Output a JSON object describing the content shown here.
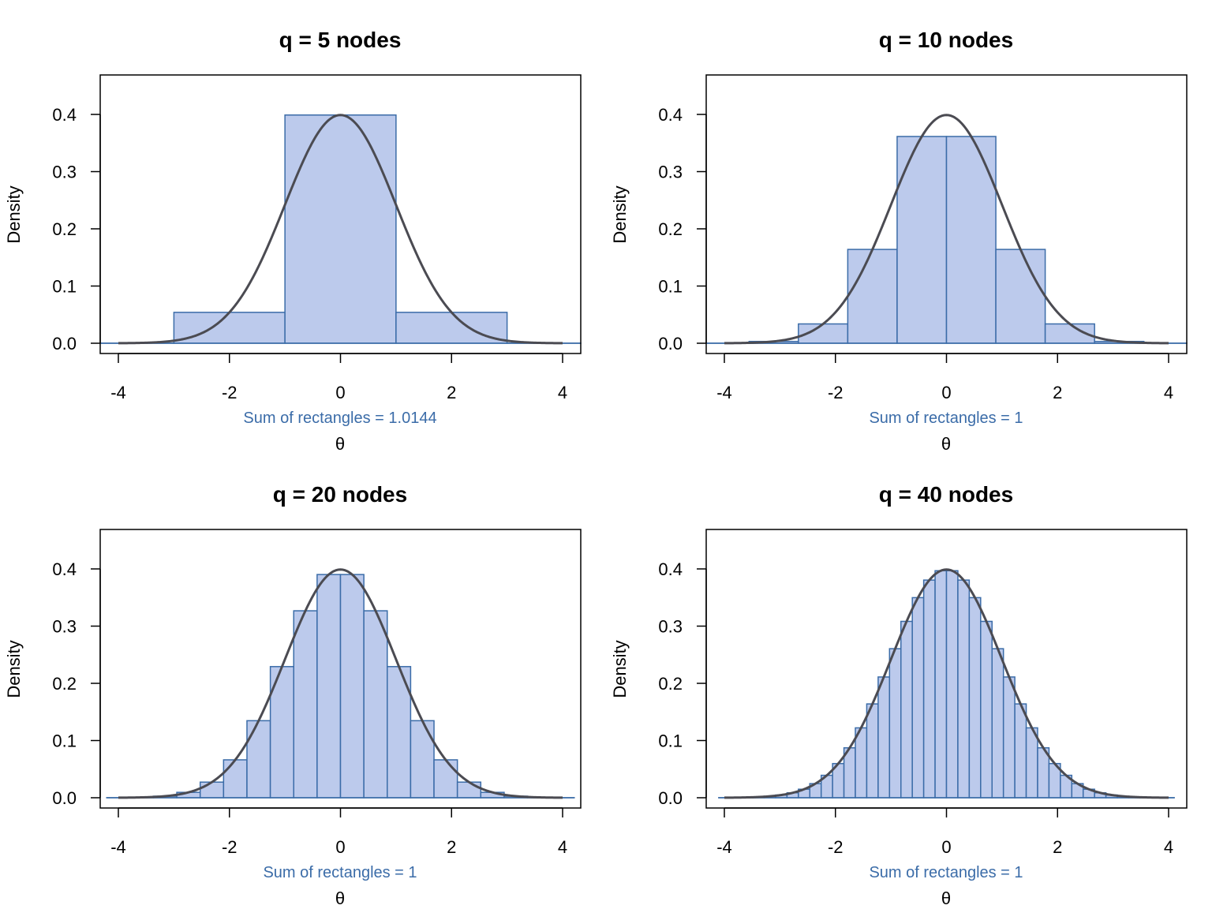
{
  "chart_data": [
    {
      "type": "bar",
      "title": "q = 5 nodes",
      "q": 5,
      "node_range": [
        -4,
        4
      ],
      "xlabel": "θ",
      "ylabel": "Density",
      "sub": "Sum of rectangles = 1.0144",
      "xticks": [
        "-4",
        "-2",
        "0",
        "2",
        "4"
      ],
      "yticks": [
        "0.0",
        "0.1",
        "0.2",
        "0.3",
        "0.4"
      ],
      "xlim": [
        -4.32,
        4.32
      ],
      "ylim": [
        -0.018,
        0.469
      ],
      "curve": "standard normal density",
      "grid": false
    },
    {
      "type": "bar",
      "title": "q = 10 nodes",
      "q": 10,
      "node_range": [
        -4,
        4
      ],
      "xlabel": "θ",
      "ylabel": "Density",
      "sub": "Sum of rectangles = 1",
      "xticks": [
        "-4",
        "-2",
        "0",
        "2",
        "4"
      ],
      "yticks": [
        "0.0",
        "0.1",
        "0.2",
        "0.3",
        "0.4"
      ],
      "xlim": [
        -4.32,
        4.32
      ],
      "ylim": [
        -0.018,
        0.469
      ],
      "curve": "standard normal density",
      "grid": false
    },
    {
      "type": "bar",
      "title": "q = 20 nodes",
      "q": 20,
      "node_range": [
        -4,
        4
      ],
      "xlabel": "θ",
      "ylabel": "Density",
      "sub": "Sum of rectangles = 1",
      "xticks": [
        "-4",
        "-2",
        "0",
        "2",
        "4"
      ],
      "yticks": [
        "0.0",
        "0.1",
        "0.2",
        "0.3",
        "0.4"
      ],
      "xlim": [
        -4.32,
        4.32
      ],
      "ylim": [
        -0.018,
        0.469
      ],
      "curve": "standard normal density",
      "grid": false
    },
    {
      "type": "bar",
      "title": "q = 40 nodes",
      "q": 40,
      "node_range": [
        -4,
        4
      ],
      "xlabel": "θ",
      "ylabel": "Density",
      "sub": "Sum of rectangles = 1",
      "xticks": [
        "-4",
        "-2",
        "0",
        "2",
        "4"
      ],
      "yticks": [
        "0.0",
        "0.1",
        "0.2",
        "0.3",
        "0.4"
      ],
      "xlim": [
        -4.32,
        4.32
      ],
      "ylim": [
        -0.018,
        0.469
      ],
      "curve": "standard normal density",
      "grid": false
    }
  ],
  "colors": {
    "fill": "#bccaec",
    "stroke": "#3b6ca8",
    "curve": "#4b4b52",
    "sub": "#3b6ca8"
  }
}
